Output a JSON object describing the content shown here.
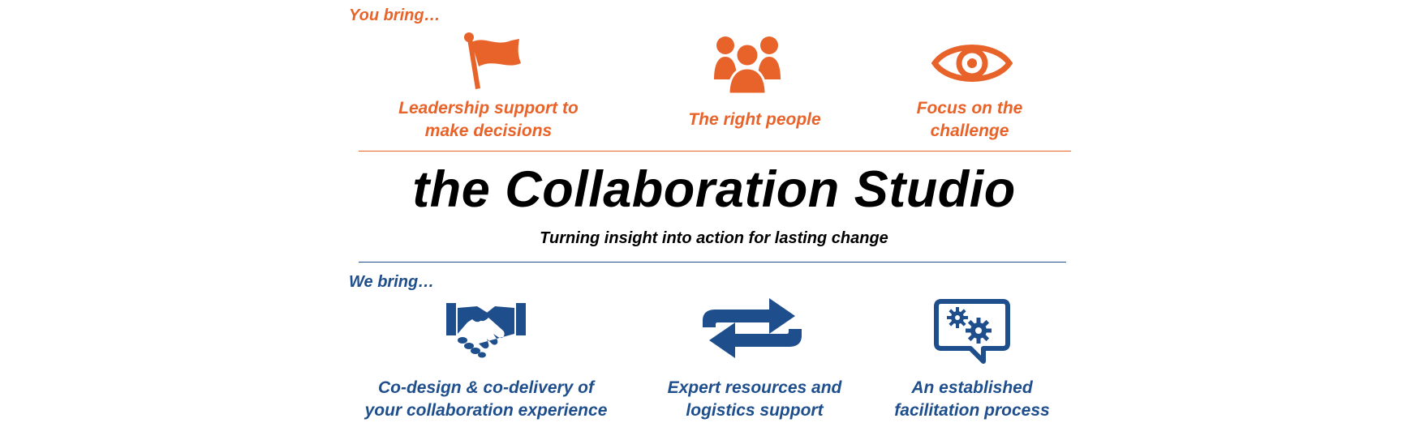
{
  "you_bring": {
    "label": "You bring…",
    "color": "#E8632A",
    "items": [
      {
        "icon": "flag-icon",
        "text": "Leadership support to\nmake decisions"
      },
      {
        "icon": "people-group-icon",
        "text": "The right people"
      },
      {
        "icon": "eye-icon",
        "text": "Focus on the\nchallenge"
      }
    ]
  },
  "center": {
    "title": "the Collaboration Studio",
    "tagline": "Turning insight into action for lasting change"
  },
  "we_bring": {
    "label": "We bring…",
    "color": "#1F4E8C",
    "items": [
      {
        "icon": "handshake-icon",
        "text": "Co-design & co-delivery of\nyour collaboration experience"
      },
      {
        "icon": "exchange-arrows-icon",
        "text": "Expert resources and\nlogistics support"
      },
      {
        "icon": "gears-speech-bubble-icon",
        "text": "An established\nfacilitation process"
      }
    ]
  }
}
